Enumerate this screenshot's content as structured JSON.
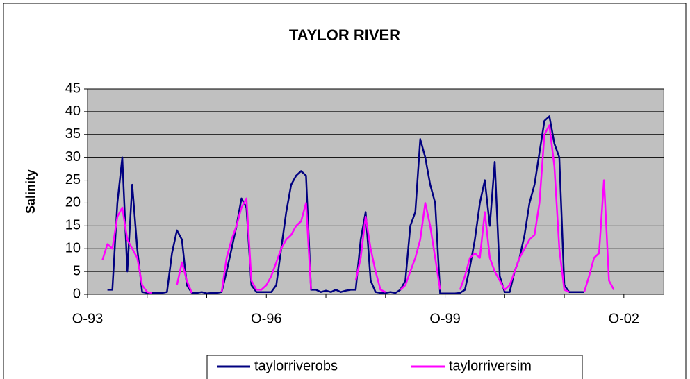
{
  "chart_data": {
    "type": "line",
    "title": "TAYLOR RIVER",
    "y_label": "Salinity",
    "x": [
      "1993-10",
      "1993-11",
      "1993-12",
      "1994-01",
      "1994-02",
      "1994-03",
      "1994-04",
      "1994-05",
      "1994-06",
      "1994-07",
      "1994-08",
      "1994-09",
      "1994-10",
      "1994-11",
      "1994-12",
      "1995-01",
      "1995-02",
      "1995-03",
      "1995-04",
      "1995-05",
      "1995-06",
      "1995-07",
      "1995-08",
      "1995-09",
      "1995-10",
      "1995-11",
      "1995-12",
      "1996-01",
      "1996-02",
      "1996-03",
      "1996-04",
      "1996-05",
      "1996-06",
      "1996-07",
      "1996-08",
      "1996-09",
      "1996-10",
      "1996-11",
      "1996-12",
      "1997-01",
      "1997-02",
      "1997-03",
      "1997-04",
      "1997-05",
      "1997-06",
      "1997-07",
      "1997-08",
      "1997-09",
      "1997-10",
      "1997-11",
      "1997-12",
      "1998-01",
      "1998-02",
      "1998-03",
      "1998-04",
      "1998-05",
      "1998-06",
      "1998-07",
      "1998-08",
      "1998-09",
      "1998-10",
      "1998-11",
      "1998-12",
      "1999-01",
      "1999-02",
      "1999-03",
      "1999-04",
      "1999-05",
      "1999-06",
      "1999-07",
      "1999-08",
      "1999-09",
      "1999-10",
      "1999-11",
      "1999-12",
      "2000-01",
      "2000-02",
      "2000-03",
      "2000-04",
      "2000-05",
      "2000-06",
      "2000-07",
      "2000-08",
      "2000-09",
      "2000-10",
      "2000-11",
      "2000-12",
      "2001-01",
      "2001-02",
      "2001-03",
      "2001-04",
      "2001-05",
      "2001-06",
      "2001-07",
      "2001-08",
      "2001-09",
      "2001-10",
      "2001-11",
      "2001-12",
      "2002-01",
      "2002-02",
      "2002-03",
      "2002-04",
      "2002-05",
      "2002-06",
      "2002-07",
      "2002-08",
      "2002-09",
      "2002-10",
      "2002-11",
      "2002-12",
      "2003-01"
    ],
    "series": [
      {
        "name": "taylorriverobs",
        "color": "#000080",
        "values": [
          null,
          null,
          null,
          null,
          1,
          1,
          20,
          30,
          5,
          24,
          10,
          0.5,
          0.3,
          0.3,
          0.3,
          0.3,
          0.5,
          9,
          14,
          12,
          2,
          0.3,
          0.3,
          0.5,
          0.2,
          0.3,
          0.3,
          0.5,
          5,
          10,
          15,
          21,
          19,
          2,
          0.5,
          0.5,
          0.5,
          0.5,
          2,
          10,
          18,
          24,
          26,
          27,
          26,
          1,
          1,
          0.5,
          0.8,
          0.5,
          1,
          0.5,
          0.8,
          1,
          1,
          12,
          18,
          3,
          0.5,
          0.3,
          0.3,
          0.5,
          0.3,
          1,
          3,
          15,
          18,
          34,
          30,
          24,
          20,
          0.2,
          0.2,
          0.2,
          0.2,
          0.3,
          1,
          6,
          12,
          20,
          25,
          15,
          29,
          4,
          0.5,
          0.5,
          5,
          8,
          13,
          20,
          24,
          31,
          38,
          39,
          33,
          30,
          2,
          0.5,
          0.5,
          0.5,
          0.5,
          null,
          null,
          null,
          null,
          null,
          null,
          null,
          null,
          null,
          null,
          null
        ]
      },
      {
        "name": "taylorriversim",
        "color": "#ff00ff",
        "values": [
          null,
          null,
          null,
          7.5,
          11,
          10,
          17,
          19,
          12,
          10,
          8,
          2,
          0.5,
          0.3,
          null,
          null,
          null,
          null,
          2,
          7,
          3,
          0.3,
          null,
          null,
          null,
          null,
          null,
          0.5,
          8,
          12,
          15,
          19,
          21,
          3,
          1,
          1,
          2,
          4,
          7,
          10,
          12,
          13,
          15,
          16,
          20,
          1,
          null,
          null,
          null,
          null,
          null,
          null,
          null,
          null,
          3,
          8,
          17,
          10,
          5,
          1,
          0.5,
          null,
          null,
          1,
          2,
          5,
          8,
          12,
          20,
          15,
          8,
          1,
          null,
          null,
          null,
          1,
          4,
          8,
          9,
          8,
          18,
          8,
          5,
          3,
          1,
          2,
          5,
          8,
          10,
          12,
          13,
          20,
          35,
          37,
          28,
          10,
          1,
          0.5,
          null,
          null,
          0.5,
          4,
          8,
          9,
          25,
          3,
          1,
          null,
          null,
          null,
          null,
          null
        ]
      }
    ],
    "xlim": [
      "1993-10",
      "2003-06"
    ],
    "xticks": [
      {
        "value": "1993-10",
        "label": "O-93"
      },
      {
        "value": "1996-10",
        "label": "O-96"
      },
      {
        "value": "1999-10",
        "label": "O-99"
      },
      {
        "value": "2002-10",
        "label": "O-02"
      }
    ],
    "xminorticks": [
      "1994-10",
      "1995-10",
      "1997-10",
      "1998-10",
      "2000-10",
      "2001-10"
    ],
    "ylim": [
      0,
      45
    ],
    "yticks": [
      0,
      5,
      10,
      15,
      20,
      25,
      30,
      35,
      40,
      45
    ],
    "grid": true,
    "plot_background": "#c0c0c0",
    "legend": "bottom"
  }
}
